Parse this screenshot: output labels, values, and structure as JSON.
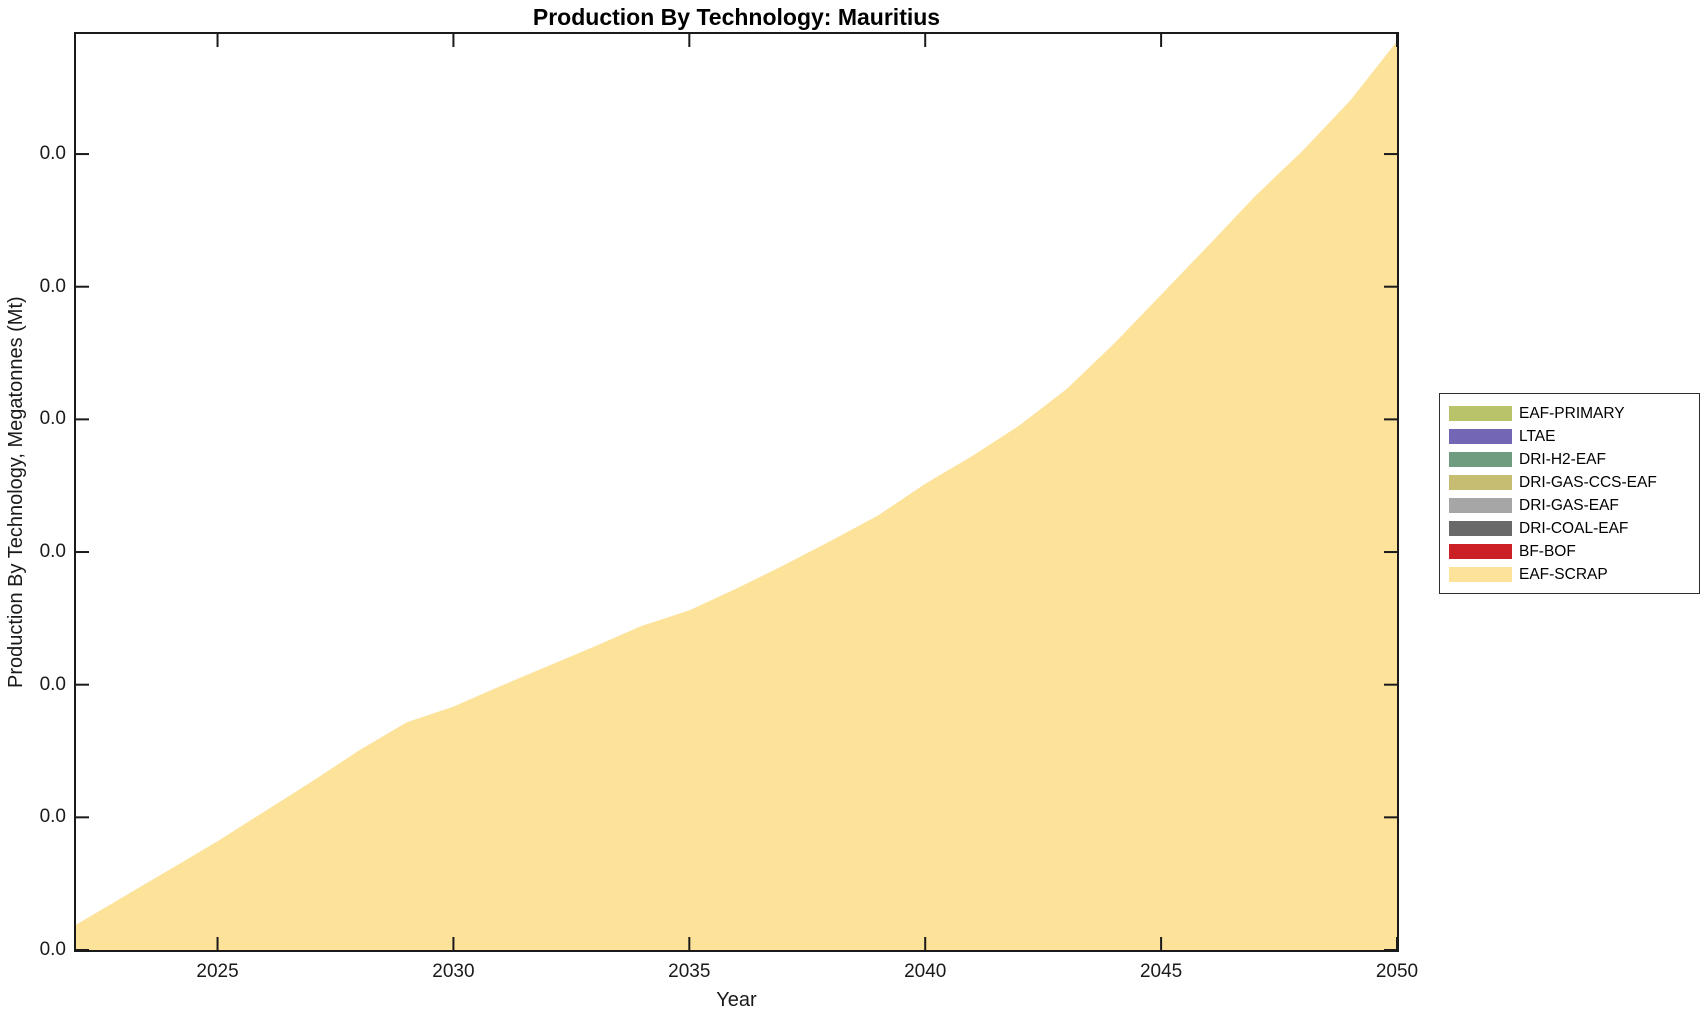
{
  "page": {
    "background": "#ffffff",
    "axis_color": "#1a1a1a"
  },
  "chart_data": {
    "type": "area",
    "stacked": true,
    "title": "Production By Technology: Mauritius",
    "xlabel": "Year",
    "ylabel": "Production By Technology, Megatonnes (Mt)",
    "grid": false,
    "legend_position": "right-outside",
    "xlim": [
      2022,
      2050
    ],
    "ylim": [
      0,
      0.1381
    ],
    "xticks": [
      2025,
      2030,
      2035,
      2040,
      2045,
      2050
    ],
    "xtick_labels": [
      "2025",
      "2030",
      "2035",
      "2040",
      "2045",
      "2050"
    ],
    "yticks": [
      0,
      0.02,
      0.04,
      0.06,
      0.08,
      0.1,
      0.12
    ],
    "ytick_labels": [
      "0.0",
      "0.0",
      "0.0",
      "0.0",
      "0.0",
      "0.0",
      "0.0"
    ],
    "x": [
      2022,
      2023,
      2024,
      2025,
      2026,
      2027,
      2028,
      2029,
      2030,
      2031,
      2032,
      2033,
      2034,
      2035,
      2036,
      2037,
      2038,
      2039,
      2040,
      2041,
      2042,
      2043,
      2044,
      2045,
      2046,
      2047,
      2048,
      2049,
      2050
    ],
    "series": [
      {
        "name": "EAF-PRIMARY",
        "color": "#b8c36a",
        "values": [
          0,
          0,
          0,
          0,
          0,
          0,
          0,
          0,
          0,
          0,
          0,
          0,
          0,
          0,
          0,
          0,
          0,
          0,
          0,
          0,
          0,
          0,
          0,
          0,
          0,
          0,
          0,
          0,
          0
        ]
      },
      {
        "name": "LTAE",
        "color": "#7366b5",
        "values": [
          0,
          0,
          0,
          0,
          0,
          0,
          0,
          0,
          0,
          0,
          0,
          0,
          0,
          0,
          0,
          0,
          0,
          0,
          0,
          0,
          0,
          0,
          0,
          0,
          0,
          0,
          0,
          0,
          0
        ]
      },
      {
        "name": "DRI-H2-EAF",
        "color": "#6f9b7f",
        "values": [
          0,
          0,
          0,
          0,
          0,
          0,
          0,
          0,
          0,
          0,
          0,
          0,
          0,
          0,
          0,
          0,
          0,
          0,
          0,
          0,
          0,
          0,
          0,
          0,
          0,
          0,
          0,
          0,
          0
        ]
      },
      {
        "name": "DRI-GAS-CCS-EAF",
        "color": "#c6bd72",
        "values": [
          0,
          0,
          0,
          0,
          0,
          0,
          0,
          0,
          0,
          0,
          0,
          0,
          0,
          0,
          0,
          0,
          0,
          0,
          0,
          0,
          0,
          0,
          0,
          0,
          0,
          0,
          0,
          0,
          0
        ]
      },
      {
        "name": "DRI-GAS-EAF",
        "color": "#a6a6a6",
        "values": [
          0,
          0,
          0,
          0,
          0,
          0,
          0,
          0,
          0,
          0,
          0,
          0,
          0,
          0,
          0,
          0,
          0,
          0,
          0,
          0,
          0,
          0,
          0,
          0,
          0,
          0,
          0,
          0,
          0
        ]
      },
      {
        "name": "DRI-COAL-EAF",
        "color": "#696969",
        "values": [
          0,
          0,
          0,
          0,
          0,
          0,
          0,
          0,
          0,
          0,
          0,
          0,
          0,
          0,
          0,
          0,
          0,
          0,
          0,
          0,
          0,
          0,
          0,
          0,
          0,
          0,
          0,
          0,
          0
        ]
      },
      {
        "name": "BF-BOF",
        "color": "#cb2026",
        "values": [
          0,
          0,
          0,
          0,
          0,
          0,
          0,
          0,
          0,
          0,
          0,
          0,
          0,
          0,
          0,
          0,
          0,
          0,
          0,
          0,
          0,
          0,
          0,
          0,
          0,
          0,
          0,
          0,
          0
        ]
      },
      {
        "name": "EAF-SCRAP",
        "color": "#fde29a",
        "values": [
          0.0038,
          0.008,
          0.0122,
          0.0164,
          0.0209,
          0.0254,
          0.0301,
          0.0343,
          0.0367,
          0.0398,
          0.0428,
          0.0458,
          0.0489,
          0.0512,
          0.0545,
          0.058,
          0.0617,
          0.0655,
          0.0703,
          0.0745,
          0.0791,
          0.0846,
          0.0914,
          0.0988,
          0.1062,
          0.1137,
          0.1205,
          0.128,
          0.137
        ]
      }
    ]
  }
}
